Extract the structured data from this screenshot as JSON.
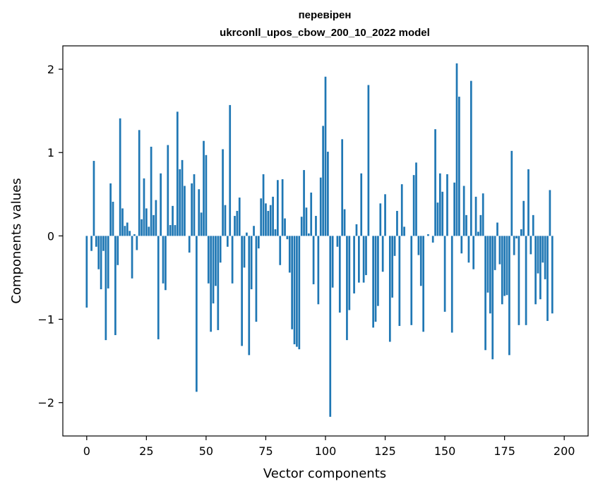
{
  "chart_data": {
    "type": "bar",
    "title_lines": [
      "перевірен",
      "ukrconll_upos_cbow_200_10_2022 model"
    ],
    "xlabel": "Vector components",
    "ylabel": "Components values",
    "xlim": [
      -10,
      210
    ],
    "ylim": [
      -2.4,
      2.28
    ],
    "xticks": [
      0,
      25,
      50,
      75,
      100,
      125,
      150,
      175,
      200
    ],
    "yticks": [
      -2,
      -1,
      0,
      1,
      2
    ],
    "ytick_labels": [
      "−2",
      "−1",
      "0",
      "1",
      "2"
    ],
    "bar_color": "#1f77b4",
    "grid": false,
    "values": [
      -0.86,
      0.0,
      -0.18,
      0.9,
      -0.13,
      -0.4,
      -0.64,
      -0.18,
      -1.25,
      -0.63,
      0.63,
      0.41,
      -1.19,
      -0.35,
      1.41,
      0.33,
      0.12,
      0.16,
      0.06,
      -0.51,
      0.02,
      -0.17,
      1.27,
      0.2,
      0.69,
      0.33,
      0.11,
      1.07,
      0.25,
      0.43,
      -1.24,
      0.75,
      -0.57,
      -0.65,
      1.09,
      0.13,
      0.36,
      0.13,
      1.49,
      0.8,
      0.91,
      0.6,
      0.0,
      -0.2,
      0.63,
      0.74,
      -1.87,
      0.56,
      0.28,
      1.14,
      0.97,
      -0.57,
      -1.15,
      -0.81,
      -0.6,
      -1.13,
      -0.32,
      1.04,
      0.37,
      -0.13,
      1.57,
      -0.57,
      0.24,
      0.3,
      0.46,
      -1.32,
      -0.38,
      0.04,
      -1.43,
      -0.64,
      0.12,
      -1.03,
      -0.15,
      0.45,
      0.74,
      0.39,
      0.3,
      0.37,
      0.47,
      0.08,
      0.67,
      -0.35,
      0.68,
      0.21,
      -0.04,
      -0.44,
      -1.12,
      -1.3,
      -1.33,
      -1.36,
      0.23,
      0.79,
      0.34,
      0.03,
      0.52,
      -0.58,
      0.24,
      -0.82,
      0.7,
      1.32,
      1.91,
      1.01,
      -2.17,
      -0.62,
      0.0,
      -0.13,
      -0.92,
      1.16,
      0.32,
      -1.25,
      -0.89,
      0.0,
      -0.69,
      0.14,
      -0.56,
      0.75,
      -0.56,
      -0.47,
      1.81,
      0.0,
      -1.1,
      -1.03,
      -0.84,
      0.39,
      -0.43,
      0.5,
      0.0,
      -1.27,
      -0.74,
      -0.24,
      0.3,
      -1.08,
      0.62,
      0.11,
      0.0,
      0.0,
      -1.07,
      0.73,
      0.88,
      -0.23,
      -0.6,
      -1.15,
      0.0,
      0.02,
      0.0,
      -0.08,
      1.28,
      0.4,
      0.75,
      0.53,
      -0.91,
      0.74,
      0.0,
      -1.16,
      0.64,
      2.07,
      1.67,
      -0.21,
      0.6,
      0.25,
      -0.32,
      1.86,
      -0.4,
      0.47,
      0.05,
      0.25,
      0.51,
      -1.37,
      -0.68,
      -0.93,
      -1.48,
      -0.41,
      0.16,
      -0.34,
      -0.82,
      -0.72,
      -0.71,
      -1.43,
      1.02,
      -0.23,
      -0.03,
      -1.07,
      0.08,
      0.42,
      -1.07,
      0.8,
      -0.22,
      0.25,
      -0.82,
      -0.45,
      -0.76,
      -0.32,
      -0.52,
      -1.02,
      0.55,
      -0.93
    ]
  }
}
